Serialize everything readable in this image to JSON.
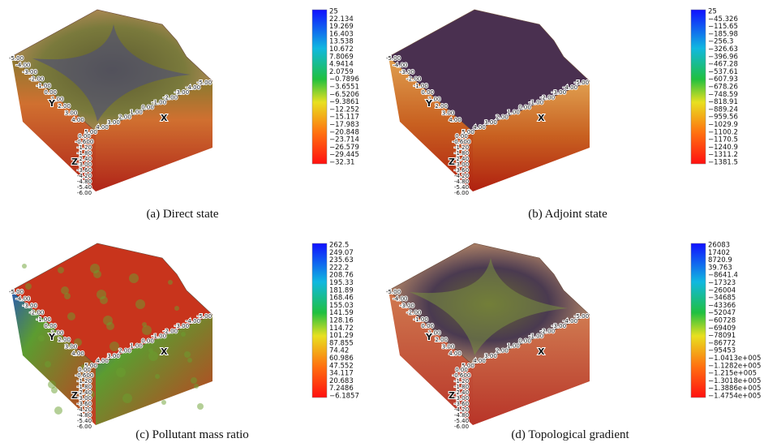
{
  "axis_ticks": {
    "x_label": "X",
    "y_label": "Y",
    "z_label": "Z",
    "y_ticks": [
      "-5.00",
      "-4.00",
      "-3.00",
      "-2.00",
      "-1.00",
      "0.00",
      "1.00",
      "2.00",
      "3.00",
      "4.00"
    ],
    "x_ticks": [
      "5.00",
      "4.00",
      "3.00",
      "2.00",
      "1.00",
      "0.00",
      "-1.00",
      "-2.00",
      "-3.00",
      "-4.00",
      "-5.00"
    ],
    "z_ticks": [
      "0.00",
      "-0.600",
      "-1.20",
      "-1.80",
      "-2.40",
      "-3.00",
      "-3.60",
      "-4.20",
      "-4.80",
      "-5.40",
      "-6.00"
    ]
  },
  "panels": [
    {
      "caption": "(a) Direct state",
      "colorbar": [
        "25",
        "22.134",
        "19.269",
        "16.403",
        "13.538",
        "10.672",
        "7.8069",
        "4.9414",
        "2.0759",
        "−0.7896",
        "−3.6551",
        "−6.5206",
        "−9.3861",
        "−12.252",
        "−15.117",
        "−17.983",
        "−20.848",
        "−23.714",
        "−26.579",
        "−29.445",
        "−32.31"
      ]
    },
    {
      "caption": "(b) Adjoint state",
      "colorbar": [
        "25",
        "−45.326",
        "−115.65",
        "−185.98",
        "−256.3",
        "−326.63",
        "−396.96",
        "−467.28",
        "−537.61",
        "−607.93",
        "−678.26",
        "−748.59",
        "−818.91",
        "−889.24",
        "−959.56",
        "−1029.9",
        "−1100.2",
        "−1170.5",
        "−1240.9",
        "−1311.2",
        "−1381.5"
      ]
    },
    {
      "caption": "(c) Pollutant mass ratio",
      "colorbar": [
        "262.5",
        "249.07",
        "235.63",
        "222.2",
        "208.76",
        "195.33",
        "181.89",
        "168.46",
        "155.03",
        "141.59",
        "128.16",
        "114.72",
        "101.29",
        "87.855",
        "74.42",
        "60.986",
        "47.552",
        "34.117",
        "20.683",
        "7.2486",
        "−6.1857"
      ]
    },
    {
      "caption": "(d) Topological gradient",
      "colorbar": [
        "26083",
        "17402",
        "8720.9",
        "39.763",
        "−8641.4",
        "−17323",
        "−26004",
        "−34685",
        "−43366",
        "−52047",
        "−60728",
        "−69409",
        "−78091",
        "−86772",
        "−95453",
        "−1.0413e+005",
        "−1.1282e+005",
        "−1.215e+005",
        "−1.3018e+005",
        "−1.3886e+005",
        "−1.4754e+005"
      ]
    }
  ]
}
